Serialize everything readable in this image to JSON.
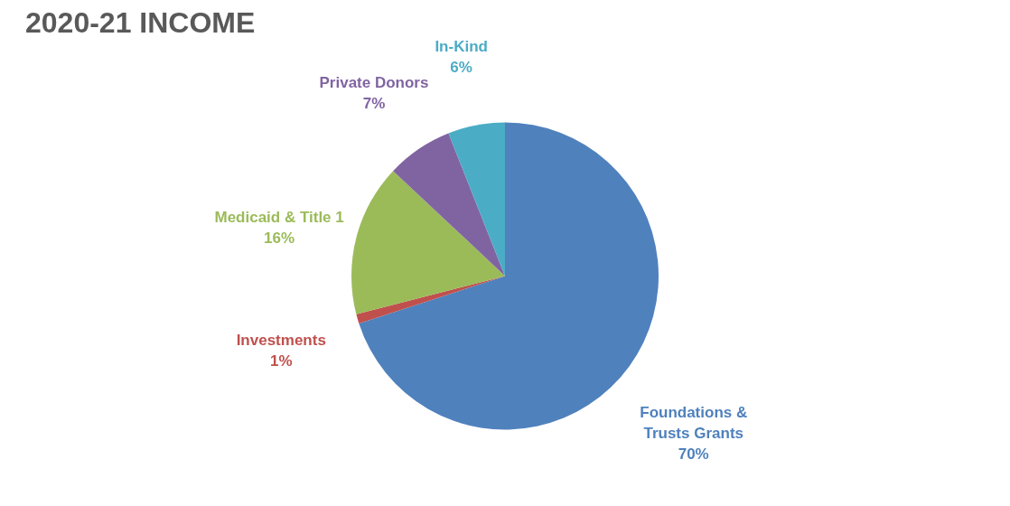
{
  "chart_data": {
    "type": "pie",
    "title": "2020-21 INCOME",
    "categories": [
      "Foundations & Trusts Grants",
      "Investments",
      "Medicaid & Title 1",
      "Private Donors",
      "In-Kind"
    ],
    "values": [
      70,
      1,
      16,
      7,
      6
    ],
    "colors": [
      "#4f81bd",
      "#c0504d",
      "#9bbb59",
      "#8064a2",
      "#4bacc6"
    ],
    "value_labels": [
      "70%",
      "1%",
      "16%",
      "7%",
      "6%"
    ],
    "legend": false
  }
}
